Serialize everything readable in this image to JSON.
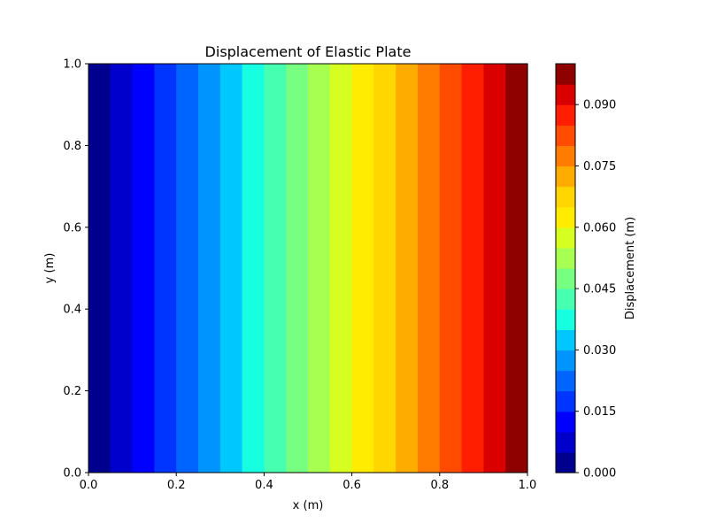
{
  "chart_data": {
    "type": "heatmap",
    "title": "Displacement of Elastic Plate",
    "xlabel": "x (m)",
    "ylabel": "y (m)",
    "xlim": [
      0.0,
      1.0
    ],
    "ylim": [
      0.0,
      1.0
    ],
    "x_ticks": [
      "0.0",
      "0.2",
      "0.4",
      "0.6",
      "0.8",
      "1.0"
    ],
    "y_ticks": [
      "0.0",
      "0.2",
      "0.4",
      "0.6",
      "0.8",
      "1.0"
    ],
    "grid": false,
    "description": "Displacement varies linearly with x from 0.000 at x=0.0 to about 0.100 at x=1.0; constant along y; filled contour with 20 levels",
    "contour_levels": [
      0.0,
      0.005,
      0.01,
      0.015,
      0.02,
      0.025,
      0.03,
      0.035,
      0.04,
      0.045,
      0.05,
      0.055,
      0.06,
      0.065,
      0.07,
      0.075,
      0.08,
      0.085,
      0.09,
      0.095,
      0.1
    ],
    "bands": [
      {
        "x_range": [
          0.0,
          0.05
        ],
        "value_range": [
          0.0,
          0.005
        ],
        "color": "#00008f"
      },
      {
        "x_range": [
          0.05,
          0.1
        ],
        "value_range": [
          0.005,
          0.01
        ],
        "color": "#0000cc"
      },
      {
        "x_range": [
          0.1,
          0.15
        ],
        "value_range": [
          0.01,
          0.015
        ],
        "color": "#0000fe"
      },
      {
        "x_range": [
          0.15,
          0.2
        ],
        "value_range": [
          0.015,
          0.02
        ],
        "color": "#0034ff"
      },
      {
        "x_range": [
          0.2,
          0.25
        ],
        "value_range": [
          0.02,
          0.025
        ],
        "color": "#0064ff"
      },
      {
        "x_range": [
          0.25,
          0.3
        ],
        "value_range": [
          0.025,
          0.03
        ],
        "color": "#0094ff"
      },
      {
        "x_range": [
          0.3,
          0.35
        ],
        "value_range": [
          0.03,
          0.035
        ],
        "color": "#00c8ff"
      },
      {
        "x_range": [
          0.35,
          0.4
        ],
        "value_range": [
          0.035,
          0.04
        ],
        "color": "#16ffe1"
      },
      {
        "x_range": [
          0.4,
          0.45
        ],
        "value_range": [
          0.04,
          0.045
        ],
        "color": "#46ffb1"
      },
      {
        "x_range": [
          0.45,
          0.5
        ],
        "value_range": [
          0.045,
          0.05
        ],
        "color": "#76ff81"
      },
      {
        "x_range": [
          0.5,
          0.55
        ],
        "value_range": [
          0.05,
          0.055
        ],
        "color": "#a6ff51"
      },
      {
        "x_range": [
          0.55,
          0.6
        ],
        "value_range": [
          0.055,
          0.06
        ],
        "color": "#d6ff21"
      },
      {
        "x_range": [
          0.6,
          0.65
        ],
        "value_range": [
          0.06,
          0.065
        ],
        "color": "#ffec00"
      },
      {
        "x_range": [
          0.65,
          0.7
        ],
        "value_range": [
          0.065,
          0.07
        ],
        "color": "#ffd600"
      },
      {
        "x_range": [
          0.7,
          0.75
        ],
        "value_range": [
          0.07,
          0.075
        ],
        "color": "#ffac00"
      },
      {
        "x_range": [
          0.75,
          0.8
        ],
        "value_range": [
          0.075,
          0.08
        ],
        "color": "#ff7c00"
      },
      {
        "x_range": [
          0.8,
          0.85
        ],
        "value_range": [
          0.08,
          0.085
        ],
        "color": "#ff4c00"
      },
      {
        "x_range": [
          0.85,
          0.9
        ],
        "value_range": [
          0.085,
          0.09
        ],
        "color": "#ff1e00"
      },
      {
        "x_range": [
          0.9,
          0.95
        ],
        "value_range": [
          0.09,
          0.095
        ],
        "color": "#da0000"
      },
      {
        "x_range": [
          0.95,
          1.0
        ],
        "value_range": [
          0.095,
          0.1
        ],
        "color": "#8f0000"
      }
    ],
    "colorbar": {
      "label": "Displacement (m)",
      "range": [
        0.0,
        0.1
      ],
      "ticks": [
        {
          "value": 0.0,
          "label": "0.000"
        },
        {
          "value": 0.015,
          "label": "0.015"
        },
        {
          "value": 0.03,
          "label": "0.030"
        },
        {
          "value": 0.045,
          "label": "0.045"
        },
        {
          "value": 0.06,
          "label": "0.060"
        },
        {
          "value": 0.075,
          "label": "0.075"
        },
        {
          "value": 0.09,
          "label": "0.090"
        }
      ]
    }
  }
}
